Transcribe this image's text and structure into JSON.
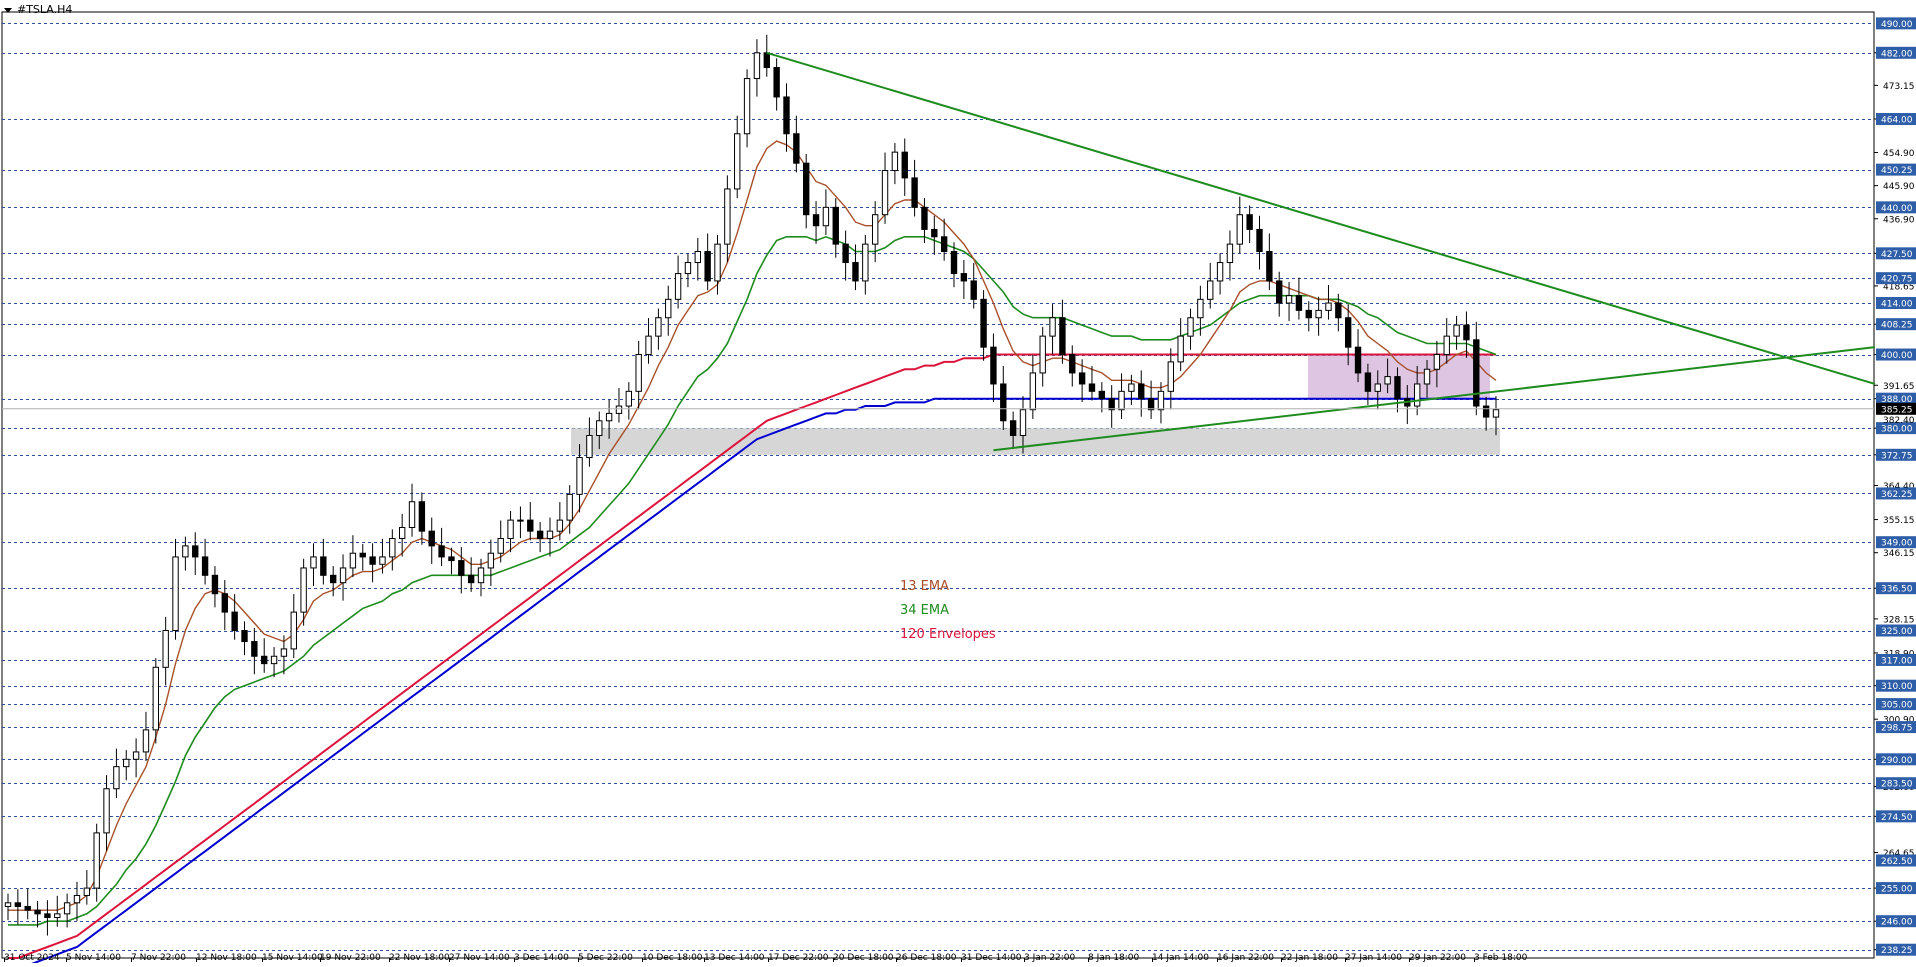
{
  "window": {
    "symbol": "#TSLA.H4"
  },
  "colors": {
    "grid": "#2f4f9a",
    "bull": "#ffffff",
    "bear": "#000000",
    "ema13": "#a8502a",
    "ema34": "#1f8c1f",
    "env_upper": "#dc143c",
    "env_lower": "#0000d0",
    "trendline": "#1f8c1f",
    "zone_gray": "#c8c8c8",
    "zone_pink": "#c8a0d0",
    "label_bg": "#2e5ea8"
  },
  "legend": [
    {
      "text": "13 EMA",
      "color": "#a8502a"
    },
    {
      "text": "34 EMA",
      "color": "#1f8c1f"
    },
    {
      "text": "120 Envelopes",
      "color": "#dc143c"
    }
  ],
  "chart_data": {
    "type": "candlestick",
    "title": "#TSLA.H4",
    "ylim": [
      236.0,
      492.0
    ],
    "y_grid_levels": [
      490.0,
      482.0,
      464.0,
      450.25,
      440.0,
      427.5,
      420.75,
      414.0,
      408.25,
      400.0,
      388.0,
      380.0,
      372.75,
      362.25,
      349.0,
      336.5,
      325.0,
      317.0,
      310.0,
      305.0,
      298.75,
      290.0,
      283.5,
      274.5,
      262.5,
      255.0,
      246.0,
      238.25
    ],
    "y_tick_labels": [
      "482.00",
      "473.15",
      "464.00",
      "454.90",
      "445.90",
      "436.90",
      "427.50",
      "418.65",
      "408.25",
      "400.00",
      "391.65",
      "388.00",
      "380.00",
      "372.75",
      "364.40",
      "355.15",
      "346.15",
      "336.50",
      "328.15",
      "318.90",
      "310.00",
      "300.90",
      "290.00",
      "282.60",
      "274.50",
      "264.65",
      "255.00",
      "246.00",
      "238.25"
    ],
    "highlighted_levels": [
      "490.00",
      "482.00",
      "464.00",
      "450.25",
      "440.00",
      "427.50",
      "420.75",
      "414.00",
      "408.25",
      "400.00",
      "388.00",
      "380.00",
      "372.75",
      "362.25",
      "349.00",
      "336.50",
      "325.00",
      "317.00",
      "310.00",
      "305.00",
      "298.75",
      "290.00",
      "283.50",
      "274.50",
      "262.50",
      "255.00",
      "246.00",
      "238.25"
    ],
    "current_price": 385.25,
    "current_price_label": "385.25",
    "secondary_price_label": "382.40",
    "x_tick_labels": [
      "31 Oct 2024",
      "5 Nov 14:00",
      "7 Nov 22:00",
      "12 Nov 18:00",
      "15 Nov 14:00",
      "19 Nov 22:00",
      "22 Nov 18:00",
      "27 Nov 14:00",
      "3 Dec 14:00",
      "5 Dec 22:00",
      "10 Dec 18:00",
      "13 Dec 14:00",
      "17 Dec 22:00",
      "20 Dec 18:00",
      "26 Dec 18:00",
      "31 Dec 14:00",
      "3 Jan 22:00",
      "8 Jan 18:00",
      "14 Jan 14:00",
      "16 Jan 22:00",
      "22 Jan 18:00",
      "27 Jan 14:00",
      "29 Jan 22:00",
      "3 Feb 18:00"
    ],
    "close_path": [
      251,
      250,
      249,
      248,
      247,
      248,
      251,
      253,
      255,
      270,
      282,
      288,
      290,
      292,
      298,
      315,
      325,
      345,
      348,
      345,
      340,
      335,
      330,
      325,
      322,
      318,
      316,
      318,
      320,
      330,
      342,
      345,
      340,
      338,
      342,
      346,
      345,
      343,
      345,
      350,
      353,
      360,
      352,
      348,
      345,
      344,
      340,
      338,
      342,
      346,
      350,
      355,
      355,
      352,
      350,
      352,
      355,
      362,
      372,
      378,
      382,
      384,
      386,
      390,
      400,
      405,
      410,
      415,
      422,
      425,
      428,
      420,
      430,
      445,
      460,
      475,
      482,
      478,
      470,
      460,
      452,
      438,
      435,
      440,
      430,
      425,
      420,
      430,
      438,
      450,
      455,
      448,
      440,
      434,
      432,
      428,
      422,
      420,
      415,
      402,
      392,
      382,
      378,
      385,
      395,
      405,
      410,
      400,
      395,
      392,
      390,
      388,
      385,
      390,
      392,
      388,
      385,
      390,
      398,
      405,
      410,
      415,
      420,
      425,
      430,
      438,
      434,
      428,
      420,
      414,
      416,
      412,
      410,
      412,
      414,
      410,
      402,
      395,
      390,
      392,
      394,
      388,
      386,
      392,
      396,
      400,
      405,
      408,
      404,
      386,
      383,
      385
    ],
    "ema13_path": [
      249,
      249,
      249,
      249,
      249,
      249,
      250,
      251,
      253,
      258,
      265,
      272,
      278,
      283,
      288,
      296,
      305,
      316,
      325,
      331,
      335,
      336,
      335,
      333,
      330,
      327,
      324,
      323,
      322,
      324,
      328,
      333,
      335,
      336,
      338,
      340,
      341,
      341,
      342,
      344,
      346,
      349,
      350,
      349,
      348,
      347,
      345,
      343,
      343,
      344,
      345,
      347,
      349,
      350,
      350,
      350,
      351,
      354,
      358,
      363,
      368,
      373,
      377,
      381,
      386,
      391,
      397,
      402,
      408,
      412,
      416,
      417,
      419,
      425,
      433,
      442,
      451,
      456,
      458,
      457,
      455,
      451,
      447,
      446,
      443,
      440,
      436,
      435,
      435,
      438,
      441,
      442,
      442,
      440,
      438,
      436,
      433,
      430,
      426,
      420,
      414,
      407,
      401,
      398,
      397,
      398,
      399,
      399,
      398,
      397,
      396,
      395,
      393,
      393,
      393,
      392,
      391,
      391,
      392,
      394,
      397,
      400,
      404,
      408,
      412,
      417,
      419,
      420,
      420,
      419,
      418,
      417,
      416,
      415,
      415,
      414,
      412,
      409,
      405,
      403,
      401,
      398,
      396,
      395,
      395,
      396,
      398,
      400,
      401,
      398,
      395,
      393
    ],
    "ema34_path": [
      245,
      245,
      245,
      245,
      246,
      246,
      246,
      247,
      248,
      250,
      253,
      256,
      260,
      263,
      267,
      272,
      278,
      284,
      291,
      296,
      300,
      304,
      307,
      309,
      310,
      311,
      312,
      313,
      314,
      316,
      318,
      321,
      323,
      325,
      327,
      329,
      331,
      332,
      333,
      335,
      336,
      338,
      339,
      340,
      340,
      340,
      340,
      340,
      340,
      340,
      341,
      342,
      343,
      344,
      345,
      346,
      347,
      349,
      351,
      353,
      356,
      359,
      362,
      365,
      369,
      373,
      377,
      381,
      386,
      390,
      394,
      396,
      399,
      403,
      409,
      415,
      422,
      427,
      431,
      432,
      432,
      432,
      431,
      432,
      431,
      430,
      428,
      428,
      428,
      429,
      431,
      432,
      432,
      432,
      431,
      430,
      429,
      428,
      426,
      423,
      420,
      417,
      413,
      411,
      410,
      410,
      410,
      410,
      409,
      408,
      407,
      406,
      405,
      405,
      405,
      404,
      404,
      404,
      404,
      405,
      406,
      407,
      408,
      410,
      412,
      414,
      415,
      416,
      416,
      416,
      416,
      416,
      416,
      415,
      415,
      415,
      414,
      413,
      411,
      410,
      408,
      406,
      405,
      404,
      403,
      403,
      403,
      403,
      403,
      402,
      401,
      400
    ],
    "env_upper_path": [
      236,
      236,
      237,
      238,
      239,
      240,
      241,
      242,
      244,
      246,
      248,
      250,
      252,
      254,
      256,
      258,
      260,
      262,
      264,
      266,
      268,
      270,
      272,
      274,
      276,
      278,
      280,
      282,
      284,
      286,
      288,
      290,
      292,
      294,
      296,
      298,
      300,
      302,
      304,
      306,
      308,
      310,
      312,
      314,
      316,
      318,
      320,
      322,
      324,
      326,
      328,
      330,
      332,
      334,
      336,
      338,
      340,
      342,
      344,
      346,
      348,
      350,
      352,
      354,
      356,
      358,
      360,
      362,
      364,
      366,
      368,
      370,
      372,
      374,
      376,
      378,
      380,
      382,
      383,
      384,
      385,
      386,
      387,
      388,
      389,
      390,
      391,
      392,
      393,
      394,
      395,
      396,
      396,
      397,
      397,
      398,
      398,
      399,
      399,
      399,
      400,
      400,
      400,
      400,
      400,
      400,
      400,
      400,
      400,
      400,
      400,
      400,
      400,
      400,
      400,
      400,
      400,
      400,
      400,
      400,
      400,
      400,
      400,
      400,
      400,
      400,
      400,
      400,
      400,
      400,
      400,
      400,
      400,
      400,
      400,
      400,
      400,
      400,
      400,
      400,
      400,
      400,
      400,
      400,
      400,
      400,
      400,
      400,
      400,
      400,
      400,
      400
    ],
    "env_lower_path": [
      232,
      233,
      234,
      235,
      236,
      237,
      238,
      239,
      241,
      243,
      245,
      247,
      249,
      251,
      253,
      255,
      257,
      259,
      261,
      263,
      265,
      267,
      269,
      271,
      273,
      275,
      277,
      279,
      281,
      283,
      285,
      287,
      289,
      291,
      293,
      295,
      297,
      299,
      301,
      303,
      305,
      307,
      309,
      311,
      313,
      315,
      317,
      319,
      321,
      323,
      325,
      327,
      329,
      331,
      333,
      335,
      337,
      339,
      341,
      343,
      345,
      347,
      349,
      351,
      353,
      355,
      357,
      359,
      361,
      363,
      365,
      367,
      369,
      371,
      373,
      375,
      377,
      378,
      379,
      380,
      381,
      382,
      383,
      384,
      384,
      385,
      385,
      386,
      386,
      386,
      387,
      387,
      387,
      387,
      388,
      388,
      388,
      388,
      388,
      388,
      388,
      388,
      388,
      388,
      388,
      388,
      388,
      388,
      388,
      388,
      388,
      388,
      388,
      388,
      388,
      388,
      388,
      388,
      388,
      388,
      388,
      388,
      388,
      388,
      388,
      388,
      388,
      388,
      388,
      388,
      388,
      388,
      388,
      388,
      388,
      388,
      388,
      388,
      388,
      388,
      388,
      388,
      388,
      388,
      388,
      388,
      388,
      388,
      388,
      388,
      388,
      388
    ],
    "trendlines": [
      {
        "name": "descending-resistance",
        "from": [
          "17 Dec 22:00",
          482
        ],
        "to": [
          "3 Feb 18:00+",
          395
        ]
      },
      {
        "name": "ascending-support",
        "from": [
          "31 Dec 14:00",
          374
        ],
        "to": [
          "3 Feb 18:00+",
          402
        ]
      }
    ],
    "zones": [
      {
        "name": "support-zone",
        "low": 372.75,
        "high": 380.0
      },
      {
        "name": "resistance-zone",
        "low": 388.0,
        "high": 400.0
      }
    ]
  }
}
